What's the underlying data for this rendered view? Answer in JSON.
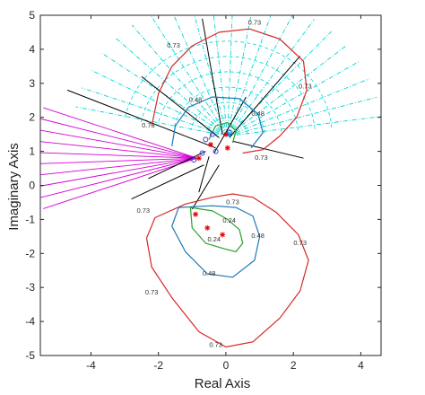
{
  "chart_data": {
    "type": "line",
    "title": "",
    "xlabel": "Real Axis",
    "ylabel": "Imaginary Axis",
    "xlim": [
      -5.5,
      4.6
    ],
    "ylim": [
      -5,
      5
    ],
    "xticks": [
      "-4",
      "-2",
      "0",
      "2",
      "4"
    ],
    "xtick_values": [
      -4,
      -2,
      0,
      2,
      4
    ],
    "yticks": [
      "-5",
      "-4",
      "-3",
      "-2",
      "-1",
      "0",
      "1",
      "2",
      "3",
      "4",
      "5"
    ],
    "ytick_values": [
      -5,
      -4,
      -3,
      -2,
      -1,
      0,
      1,
      2,
      3,
      4,
      5
    ],
    "grid": false,
    "colors": {
      "contour_073": "#d62728",
      "contour_048": "#1f77b4",
      "contour_024": "#2ca02c",
      "locus_cyan": "#00d5d5",
      "locus_magenta": "#d400d4",
      "locus_dark": "#000000",
      "poles": "#e00000",
      "zeros": "#3b3bd9"
    },
    "contours": [
      {
        "level_label": "0.73",
        "color_key": "contour_073",
        "closed": true,
        "points": [
          [
            -0.4,
            -0.35
          ],
          [
            -1.2,
            -0.55
          ],
          [
            -2.1,
            -0.95
          ],
          [
            -2.35,
            -1.55
          ],
          [
            -2.2,
            -2.4
          ],
          [
            -1.6,
            -3.3
          ],
          [
            -0.8,
            -4.3
          ],
          [
            0.0,
            -4.75
          ],
          [
            0.8,
            -4.6
          ],
          [
            1.6,
            -3.9
          ],
          [
            2.2,
            -3.1
          ],
          [
            2.45,
            -2.2
          ],
          [
            2.15,
            -1.45
          ],
          [
            1.5,
            -0.8
          ],
          [
            0.8,
            -0.35
          ],
          [
            0.2,
            -0.25
          ],
          [
            -0.4,
            -0.35
          ]
        ],
        "labels": [
          [
            -2.45,
            -0.8
          ],
          [
            -2.2,
            -3.2
          ],
          [
            -0.3,
            -4.75
          ],
          [
            2.2,
            -1.75
          ],
          [
            0.2,
            -0.55
          ]
        ]
      },
      {
        "level_label": "0.73",
        "color_key": "contour_073",
        "closed": false,
        "points": [
          [
            -2.2,
            1.75
          ],
          [
            -2.0,
            2.7
          ],
          [
            -1.6,
            3.5
          ],
          [
            -1.0,
            4.1
          ],
          [
            -0.2,
            4.5
          ],
          [
            0.7,
            4.6
          ],
          [
            1.6,
            4.3
          ],
          [
            2.3,
            3.65
          ],
          [
            2.4,
            2.8
          ],
          [
            2.1,
            2.0
          ],
          [
            1.6,
            1.45
          ],
          [
            1.1,
            1.05
          ],
          [
            0.5,
            0.95
          ]
        ],
        "labels": [
          [
            -1.55,
            4.05
          ],
          [
            0.85,
            4.72
          ],
          [
            2.35,
            2.85
          ],
          [
            1.05,
            0.75
          ],
          [
            -2.3,
            1.7
          ]
        ]
      },
      {
        "level_label": "0.48",
        "color_key": "contour_048",
        "closed": true,
        "points": [
          [
            -1.4,
            -0.65
          ],
          [
            -1.6,
            -1.2
          ],
          [
            -1.2,
            -1.95
          ],
          [
            -0.55,
            -2.6
          ],
          [
            0.2,
            -2.7
          ],
          [
            0.85,
            -2.2
          ],
          [
            1.0,
            -1.5
          ],
          [
            0.8,
            -0.9
          ],
          [
            0.3,
            -0.65
          ],
          [
            -0.4,
            -0.6
          ],
          [
            -1.4,
            -0.65
          ]
        ],
        "labels": [
          [
            -0.5,
            -2.65
          ],
          [
            0.95,
            -1.55
          ]
        ]
      },
      {
        "level_label": "0.48",
        "color_key": "contour_048",
        "closed": false,
        "points": [
          [
            -1.6,
            1.15
          ],
          [
            -1.5,
            1.75
          ],
          [
            -1.1,
            2.3
          ],
          [
            -0.4,
            2.6
          ],
          [
            0.4,
            2.55
          ],
          [
            0.95,
            2.1
          ],
          [
            1.1,
            1.55
          ],
          [
            0.75,
            1.1
          ]
        ],
        "labels": [
          [
            0.95,
            2.05
          ],
          [
            -0.9,
            2.45
          ]
        ]
      },
      {
        "level_label": "0.24",
        "color_key": "contour_024",
        "closed": true,
        "points": [
          [
            -1.05,
            -0.65
          ],
          [
            -1.0,
            -1.25
          ],
          [
            -0.6,
            -1.7
          ],
          [
            -0.1,
            -1.85
          ],
          [
            0.3,
            -1.95
          ],
          [
            0.5,
            -1.7
          ],
          [
            0.4,
            -1.3
          ],
          [
            0.05,
            -1.0
          ],
          [
            -0.4,
            -0.75
          ],
          [
            -1.05,
            -0.65
          ]
        ],
        "labels": [
          [
            0.1,
            -1.1
          ],
          [
            -0.35,
            -1.65
          ]
        ]
      },
      {
        "level_label": "0.24",
        "color_key": "contour_024",
        "closed": false,
        "points": [
          [
            -0.5,
            1.35
          ],
          [
            -0.3,
            1.75
          ],
          [
            0.05,
            1.85
          ],
          [
            0.3,
            1.6
          ],
          [
            0.2,
            1.25
          ]
        ],
        "labels": []
      }
    ],
    "locus_cyan_fan": {
      "color_key": "locus_cyan",
      "origin": [
        0.05,
        1.45
      ],
      "angles_deg": [
        8,
        16,
        24,
        32,
        40,
        48,
        56,
        64,
        72,
        80,
        88,
        96,
        104,
        112,
        120,
        128,
        136,
        144,
        152,
        160,
        168
      ],
      "length": 4.6,
      "dashed": true
    },
    "locus_magenta_fan": {
      "color_key": "locus_magenta",
      "origin": [
        -0.85,
        0.8
      ],
      "angles_deg": [
        162,
        166,
        170,
        174,
        178,
        182,
        186,
        190,
        194,
        198
      ],
      "length": 4.8,
      "dashed": false
    },
    "locus_dark_lines": [
      [
        [
          -0.65,
          0.6
        ],
        [
          -2.8,
          -0.4
        ]
      ],
      [
        [
          -0.2,
          0.6
        ],
        [
          -1.0,
          -0.7
        ]
      ],
      [
        [
          -0.3,
          1.1
        ],
        [
          -4.7,
          2.8
        ]
      ],
      [
        [
          -0.2,
          1.4
        ],
        [
          -2.5,
          3.2
        ]
      ],
      [
        [
          -0.1,
          1.5
        ],
        [
          -0.7,
          4.9
        ]
      ],
      [
        [
          0.1,
          1.4
        ],
        [
          2.2,
          3.8
        ]
      ],
      [
        [
          0.2,
          1.3
        ],
        [
          2.3,
          0.8
        ]
      ],
      [
        [
          -0.5,
          0.85
        ],
        [
          -0.8,
          -0.2
        ]
      ],
      [
        [
          -0.35,
          0.95
        ],
        [
          0.6,
          2.6
        ]
      ],
      [
        [
          -0.6,
          1.0
        ],
        [
          -2.3,
          0.2
        ]
      ]
    ],
    "poles": [
      [
        -0.9,
        -0.85
      ],
      [
        -0.55,
        -1.25
      ],
      [
        -0.1,
        -1.45
      ],
      [
        -0.8,
        0.8
      ],
      [
        0.0,
        1.5
      ],
      [
        -0.45,
        1.2
      ],
      [
        0.05,
        1.1
      ]
    ],
    "zeros": [
      [
        -0.6,
        1.35
      ],
      [
        -0.3,
        1.0
      ],
      [
        -0.95,
        0.75
      ],
      [
        0.1,
        1.55
      ],
      [
        -0.4,
        1.5
      ],
      [
        -0.7,
        0.95
      ]
    ]
  }
}
